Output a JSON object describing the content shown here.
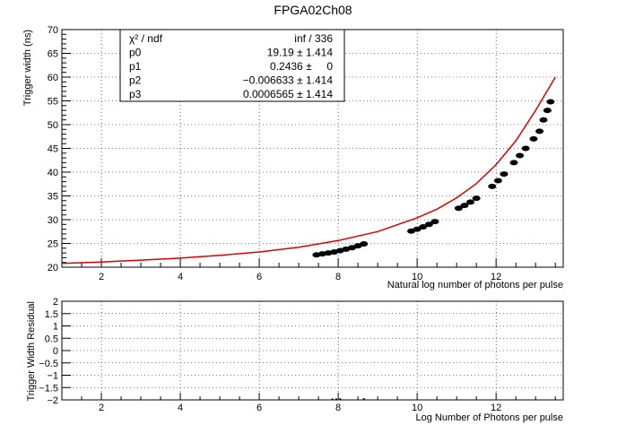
{
  "title": "FPGA02Ch08",
  "top_chart": {
    "type": "scatter",
    "xlabel": "Natural log number of photons per pulse",
    "ylabel": "Trigger width (ns)",
    "xlim": [
      1.0,
      13.7
    ],
    "ylim": [
      20,
      70
    ],
    "xticks": [
      2,
      4,
      6,
      8,
      10,
      12
    ],
    "yticks": [
      20,
      25,
      30,
      35,
      40,
      45,
      50,
      55,
      60,
      65,
      70
    ],
    "grid": true,
    "points": [
      [
        7.45,
        22.6
      ],
      [
        7.6,
        22.8
      ],
      [
        7.75,
        23.0
      ],
      [
        7.9,
        23.2
      ],
      [
        8.05,
        23.5
      ],
      [
        8.2,
        23.8
      ],
      [
        8.35,
        24.1
      ],
      [
        8.5,
        24.5
      ],
      [
        8.65,
        24.9
      ],
      [
        9.85,
        27.6
      ],
      [
        10.0,
        28.0
      ],
      [
        10.15,
        28.5
      ],
      [
        10.3,
        29.0
      ],
      [
        10.45,
        29.6
      ],
      [
        11.05,
        32.4
      ],
      [
        11.2,
        33.0
      ],
      [
        11.35,
        33.7
      ],
      [
        11.5,
        34.5
      ],
      [
        11.9,
        37.0
      ],
      [
        12.05,
        38.2
      ],
      [
        12.2,
        39.6
      ],
      [
        12.45,
        42.0
      ],
      [
        12.6,
        43.5
      ],
      [
        12.75,
        45.0
      ],
      [
        12.95,
        47.0
      ],
      [
        13.1,
        48.6
      ],
      [
        13.2,
        51.0
      ],
      [
        13.3,
        53.0
      ],
      [
        13.38,
        54.8
      ]
    ],
    "fit_curve": {
      "color": "#dd0000",
      "points": [
        [
          1.0,
          20.8
        ],
        [
          2.0,
          21.1
        ],
        [
          3.0,
          21.5
        ],
        [
          4.0,
          21.9
        ],
        [
          5.0,
          22.5
        ],
        [
          6.0,
          23.2
        ],
        [
          7.0,
          24.2
        ],
        [
          8.0,
          25.6
        ],
        [
          9.0,
          27.5
        ],
        [
          10.0,
          30.4
        ],
        [
          10.5,
          32.2
        ],
        [
          11.0,
          34.6
        ],
        [
          11.5,
          37.6
        ],
        [
          12.0,
          41.6
        ],
        [
          12.5,
          46.6
        ],
        [
          13.0,
          53.0
        ],
        [
          13.5,
          60.0
        ]
      ]
    },
    "stats": {
      "rows": [
        {
          "name": "χ² / ndf",
          "value": "inf / 336"
        },
        {
          "name": "p0",
          "value": "19.19 ± 1.414"
        },
        {
          "name": "p1",
          "value": "0.2436 ±     0"
        },
        {
          "name": "p2",
          "value": "−0.006633 ± 1.414"
        },
        {
          "name": "p3",
          "value": "0.0006565 ± 1.414"
        }
      ]
    }
  },
  "bottom_chart": {
    "type": "scatter",
    "xlabel": "Log Number of Photons per pulse",
    "ylabel": "Trigger Width Residual",
    "xlim": [
      1.0,
      13.7
    ],
    "ylim": [
      -2,
      2
    ],
    "xticks": [
      2,
      4,
      6,
      8,
      10,
      12
    ],
    "yticks": [
      -2,
      -1.5,
      -1,
      -0.5,
      0,
      0.5,
      1,
      1.5,
      2
    ],
    "ytick_labels": [
      "−2",
      "−1.5",
      "−1",
      "−0.5",
      "0",
      "0.5",
      "1",
      "1.5",
      "2"
    ],
    "grid": true,
    "points": [
      [
        7.85,
        -1.98
      ],
      [
        7.95,
        -1.98
      ],
      [
        8.05,
        -1.97
      ],
      [
        8.65,
        -1.97
      ]
    ]
  }
}
